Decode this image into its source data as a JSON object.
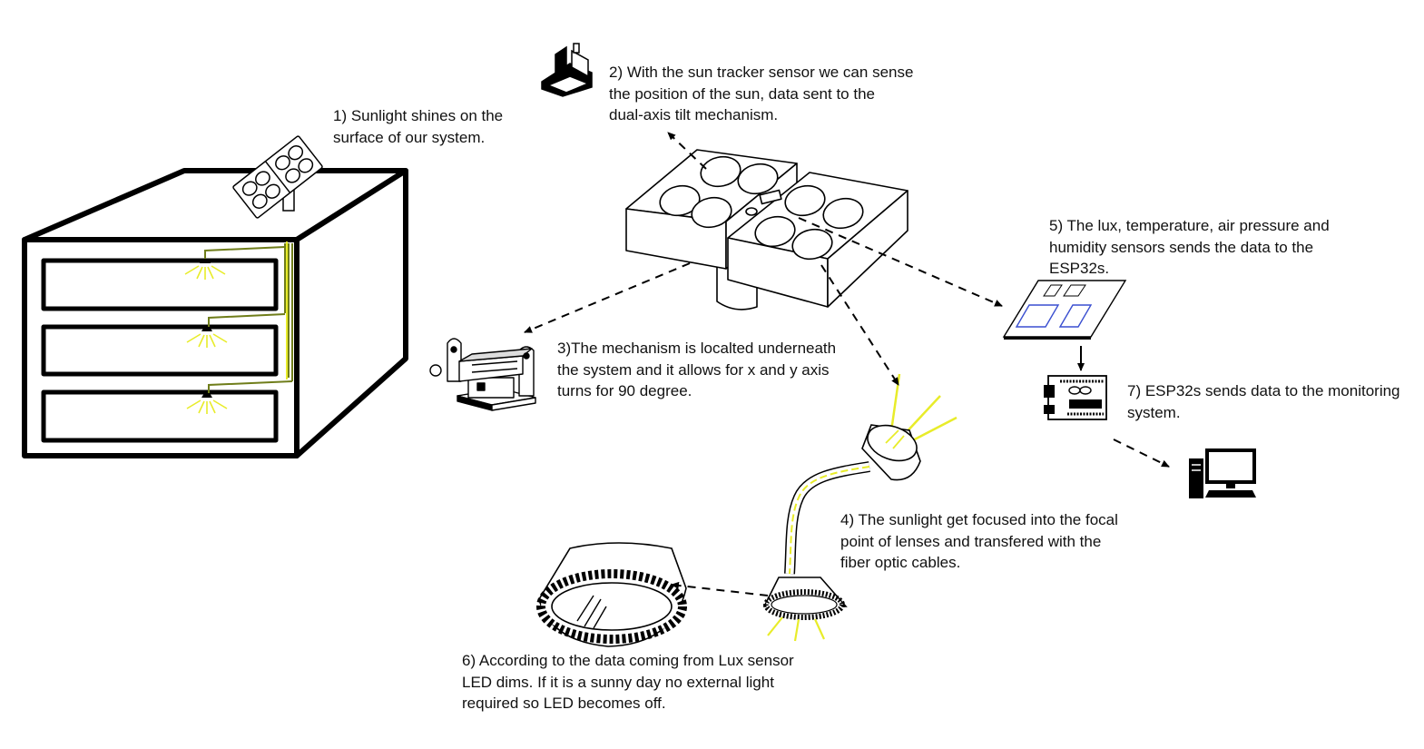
{
  "colors": {
    "stroke": "#000000",
    "light_beam": "#e8ec2a",
    "wire": "#6f7d1a",
    "board_chip": "#3a4fd0",
    "text": "#111111"
  },
  "steps": [
    {
      "id": "step-1",
      "lines": [
        "1) Sunlight shines on the",
        "surface of our system."
      ]
    },
    {
      "id": "step-2",
      "lines": [
        "2) With the sun tracker sensor we can sense",
        "the position of the sun, data sent to the",
        "dual-axis tilt mechanism."
      ]
    },
    {
      "id": "step-3",
      "lines": [
        "3)The mechanism is localted underneath",
        "the system and it allows for x and y axis",
        "turns for 90 degree."
      ]
    },
    {
      "id": "step-4",
      "lines": [
        "4) The sunlight get focused into the focal",
        "point of lenses and transfered with the",
        "fiber optic cables."
      ]
    },
    {
      "id": "step-5",
      "lines": [
        "5) The lux, temperature, air pressure and",
        "humidity sensors sends the data to the",
        "ESP32s."
      ]
    },
    {
      "id": "step-6",
      "lines": [
        "6) According to the data coming from Lux sensor",
        "LED dims. If it is a sunny day no external light",
        "required so LED becomes off."
      ]
    },
    {
      "id": "step-7",
      "lines": [
        "7) ESP32s sends data to the monitoring",
        "system."
      ]
    }
  ],
  "icons": [
    "building-cabinet-icon",
    "solar-collector-icon",
    "sun-tracker-sensor-icon",
    "tilt-mechanism-icon",
    "sensor-board-icon",
    "esp32-board-icon",
    "computer-monitor-icon",
    "lens-focuser-icon",
    "fiber-optic-cable-icon",
    "led-ring-icon",
    "led-lamp-icon"
  ]
}
